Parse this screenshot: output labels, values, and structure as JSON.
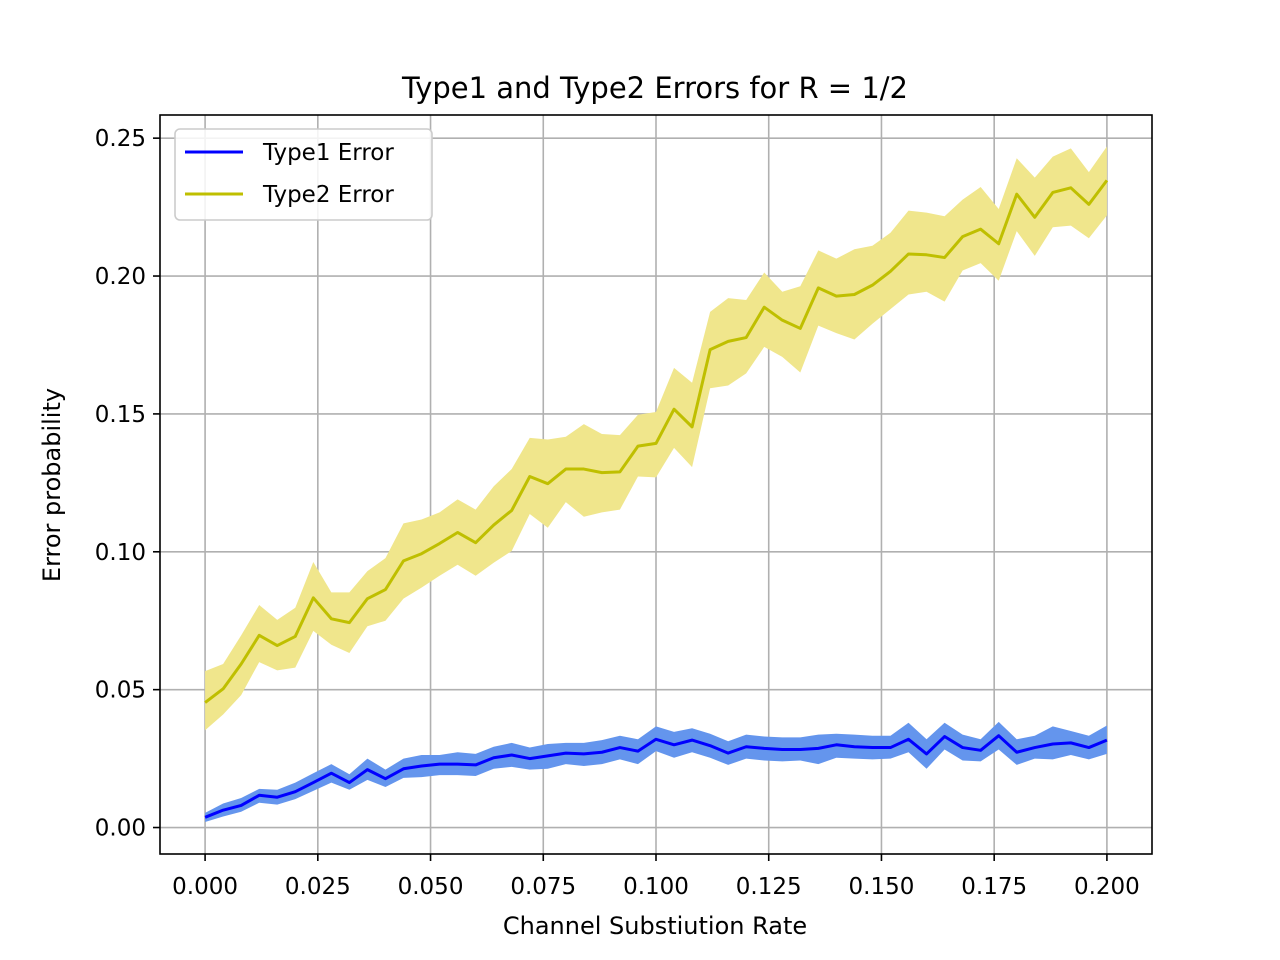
{
  "chart_data": {
    "type": "line",
    "title": "Type1 and Type2 Errors for R = 1/2",
    "xlabel": "Channel Substiution Rate",
    "ylabel": "Error probability",
    "xlim": [
      -0.01,
      0.21
    ],
    "ylim": [
      -0.0096,
      0.2584
    ],
    "x_ticks": [
      "0.000",
      "0.025",
      "0.050",
      "0.075",
      "0.100",
      "0.125",
      "0.150",
      "0.175",
      "0.200"
    ],
    "x_tick_values": [
      0,
      0.025,
      0.05,
      0.075,
      0.1,
      0.125,
      0.15,
      0.175,
      0.2
    ],
    "y_ticks": [
      "0.00",
      "0.05",
      "0.10",
      "0.15",
      "0.20",
      "0.25"
    ],
    "y_tick_values": [
      0,
      0.05,
      0.1,
      0.15,
      0.2,
      0.25
    ],
    "grid": true,
    "legend_position": "upper-left",
    "x": [
      0.0,
      0.004,
      0.008,
      0.012,
      0.016,
      0.02,
      0.024,
      0.028,
      0.032,
      0.036,
      0.04,
      0.044,
      0.048,
      0.052,
      0.056,
      0.06,
      0.064,
      0.068,
      0.072,
      0.076,
      0.08,
      0.084,
      0.088,
      0.092,
      0.096,
      0.1,
      0.104,
      0.108,
      0.112,
      0.116,
      0.12,
      0.124,
      0.128,
      0.132,
      0.136,
      0.14,
      0.144,
      0.148,
      0.152,
      0.156,
      0.16,
      0.164,
      0.168,
      0.172,
      0.176,
      0.18,
      0.184,
      0.188,
      0.192,
      0.196,
      0.2
    ],
    "series": [
      {
        "name": "Type1 Error",
        "color": "#0000ff",
        "band_color": "#6495ed",
        "values": [
          0.0037,
          0.0063,
          0.008,
          0.0117,
          0.011,
          0.013,
          0.0163,
          0.0197,
          0.0163,
          0.021,
          0.0177,
          0.0213,
          0.0223,
          0.023,
          0.023,
          0.0227,
          0.0253,
          0.0263,
          0.025,
          0.026,
          0.027,
          0.0267,
          0.0273,
          0.029,
          0.0277,
          0.032,
          0.03,
          0.0317,
          0.0297,
          0.027,
          0.0293,
          0.0287,
          0.0283,
          0.0283,
          0.0287,
          0.03,
          0.0293,
          0.029,
          0.029,
          0.032,
          0.0267,
          0.033,
          0.029,
          0.028,
          0.0333,
          0.0273,
          0.029,
          0.0303,
          0.0307,
          0.029,
          0.0317
        ],
        "lower": [
          0.002,
          0.004,
          0.0057,
          0.009,
          0.0083,
          0.0103,
          0.0133,
          0.0163,
          0.0137,
          0.0173,
          0.0147,
          0.018,
          0.0183,
          0.019,
          0.019,
          0.0187,
          0.0213,
          0.022,
          0.021,
          0.0213,
          0.023,
          0.0223,
          0.023,
          0.0247,
          0.023,
          0.0277,
          0.0253,
          0.0273,
          0.0253,
          0.0227,
          0.025,
          0.0243,
          0.024,
          0.0243,
          0.023,
          0.0253,
          0.025,
          0.0247,
          0.025,
          0.0273,
          0.0213,
          0.0283,
          0.0243,
          0.024,
          0.0283,
          0.0227,
          0.025,
          0.0247,
          0.0263,
          0.0247,
          0.0267
        ],
        "upper": [
          0.0053,
          0.0087,
          0.0107,
          0.014,
          0.0137,
          0.0163,
          0.0197,
          0.023,
          0.0193,
          0.025,
          0.021,
          0.025,
          0.0263,
          0.0263,
          0.0273,
          0.0267,
          0.0293,
          0.0307,
          0.029,
          0.0303,
          0.0307,
          0.0307,
          0.0317,
          0.0333,
          0.032,
          0.0367,
          0.0347,
          0.036,
          0.034,
          0.0313,
          0.0337,
          0.033,
          0.0327,
          0.0327,
          0.0337,
          0.034,
          0.0337,
          0.0333,
          0.0333,
          0.038,
          0.032,
          0.038,
          0.0337,
          0.032,
          0.0383,
          0.032,
          0.0333,
          0.0367,
          0.035,
          0.0333,
          0.037
        ]
      },
      {
        "name": "Type2 Error",
        "color": "#bfbf00",
        "band_color": "#f0e68c",
        "values": [
          0.0453,
          0.0503,
          0.0593,
          0.0697,
          0.066,
          0.0693,
          0.0833,
          0.0757,
          0.0743,
          0.083,
          0.0863,
          0.0967,
          0.0993,
          0.103,
          0.107,
          0.1033,
          0.1097,
          0.115,
          0.1273,
          0.1247,
          0.13,
          0.13,
          0.1287,
          0.129,
          0.1383,
          0.1393,
          0.1517,
          0.1453,
          0.1733,
          0.1763,
          0.1777,
          0.1887,
          0.184,
          0.181,
          0.1957,
          0.1927,
          0.1933,
          0.1967,
          0.2017,
          0.208,
          0.2077,
          0.2067,
          0.2143,
          0.217,
          0.2117,
          0.2297,
          0.2213,
          0.2303,
          0.232,
          0.226,
          0.2347
        ],
        "lower": [
          0.0353,
          0.041,
          0.048,
          0.06,
          0.057,
          0.058,
          0.0713,
          0.0663,
          0.0633,
          0.073,
          0.075,
          0.083,
          0.087,
          0.0913,
          0.0953,
          0.0913,
          0.096,
          0.1003,
          0.1137,
          0.1087,
          0.118,
          0.1127,
          0.1143,
          0.1153,
          0.1273,
          0.127,
          0.1377,
          0.1307,
          0.1593,
          0.1603,
          0.1647,
          0.1743,
          0.1707,
          0.165,
          0.182,
          0.1793,
          0.177,
          0.1827,
          0.188,
          0.1933,
          0.1943,
          0.1907,
          0.202,
          0.2047,
          0.1983,
          0.2163,
          0.2073,
          0.2177,
          0.2183,
          0.2137,
          0.222
        ],
        "upper": [
          0.0567,
          0.0593,
          0.0697,
          0.0807,
          0.0753,
          0.0797,
          0.0963,
          0.0853,
          0.0853,
          0.093,
          0.0977,
          0.1103,
          0.1117,
          0.1143,
          0.119,
          0.1153,
          0.1237,
          0.13,
          0.1413,
          0.1407,
          0.1417,
          0.1463,
          0.1427,
          0.1423,
          0.1497,
          0.1507,
          0.1667,
          0.1613,
          0.187,
          0.192,
          0.1913,
          0.2013,
          0.1943,
          0.1963,
          0.2093,
          0.2063,
          0.2097,
          0.211,
          0.2157,
          0.2237,
          0.223,
          0.2217,
          0.2277,
          0.2323,
          0.2243,
          0.2427,
          0.2357,
          0.2433,
          0.2463,
          0.2377,
          0.247
        ]
      }
    ]
  }
}
